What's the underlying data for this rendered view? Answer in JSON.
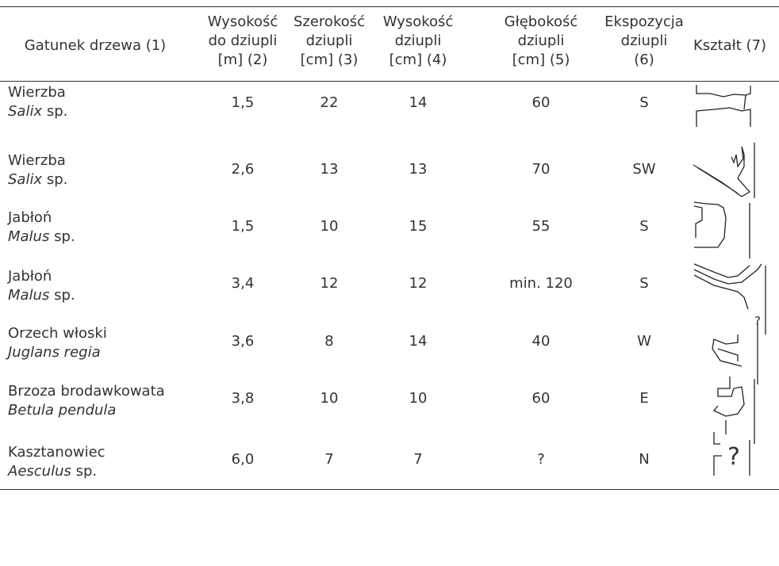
{
  "table": {
    "headers": [
      [
        "Gatunek drzewa (1)"
      ],
      [
        "Wysokość",
        "do dziupli",
        "[m] (2)"
      ],
      [
        "Szerokość",
        "dziupli",
        "[cm] (3)"
      ],
      [
        "Wysokość",
        "dziupli",
        "[cm] (4)"
      ],
      [
        "Głębokość",
        "dziupli",
        "[cm] (5)"
      ],
      [
        "Ekspozycja",
        "dziupli",
        "(6)"
      ],
      [
        "Kształt (7)"
      ]
    ],
    "rows": [
      {
        "name": "Wierzba",
        "latin_italic": "Salix",
        "latin_rest": "sp.",
        "cells": [
          "1,5",
          "22",
          "14",
          "60",
          "S"
        ]
      },
      {
        "name": "Wierzba",
        "latin_italic": "Salix",
        "latin_rest": "sp.",
        "cells": [
          "2,6",
          "13",
          "13",
          "70",
          "SW"
        ]
      },
      {
        "name": "Jabłoń",
        "latin_italic": "Malus",
        "latin_rest": "sp.",
        "cells": [
          "1,5",
          "10",
          "15",
          "55",
          "S"
        ]
      },
      {
        "name": "Jabłoń",
        "latin_italic": "Malus",
        "latin_rest": "sp.",
        "cells": [
          "3,4",
          "12",
          "12",
          "min. 120",
          "S"
        ],
        "shape_label": "?"
      },
      {
        "name": "Orzech włoski",
        "latin_italic": "Juglans regia",
        "cells": [
          "3,6",
          "8",
          "14",
          "40",
          "W"
        ]
      },
      {
        "name": "Brzoza brodawkowata",
        "latin_italic": "Betula pendula",
        "cells": [
          "3,8",
          "10",
          "10",
          "60",
          "E"
        ]
      },
      {
        "name": "Kasztanowiec",
        "latin_italic": "Aesculus",
        "latin_rest": "sp.",
        "cells": [
          "6,0",
          "7",
          "7",
          "?",
          "N"
        ],
        "shape_label": "?"
      }
    ]
  }
}
